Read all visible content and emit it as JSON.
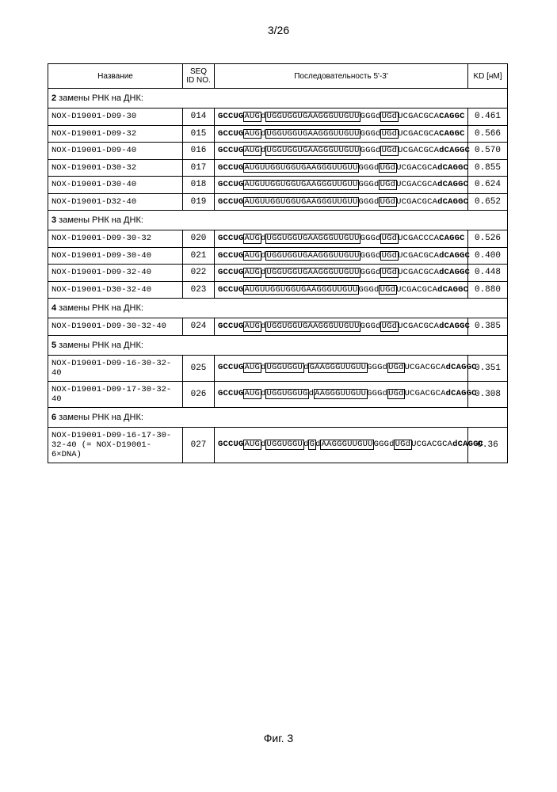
{
  "page_number": "3/26",
  "figure_label": "Фиг. 3",
  "headers": {
    "name": "Название",
    "seqid": "SEQ ID NO.",
    "seq": "Последовательность 5'-3'",
    "kd": "KD [нM]"
  },
  "sections": [
    {
      "bold": "2",
      "text": " замены РНК на ДНК:"
    },
    {
      "bold": "3",
      "text": " замены РНК на ДНК:"
    },
    {
      "bold": "4",
      "text": " замены РНК на ДНК:"
    },
    {
      "bold": "5",
      "text": " замены РНК на ДНК:"
    },
    {
      "bold": "6",
      "text": " замены РНК на ДНК:"
    }
  ],
  "rows": [
    {
      "name": "NOX-D19001-D09-30",
      "seqid": "014",
      "kd": "0.461",
      "seq": "<b>GCCUG</b><span class='box'>AUG</span>d<span class='box'>UGGUGGUGAAGGGUUGUU</span>GGGd<span class='box'>UGd</span>UCGACGCA<b>CAGGC</b>"
    },
    {
      "name": "NOX-D19001-D09-32",
      "seqid": "015",
      "kd": "0.566",
      "seq": "<b>GCCUG</b><span class='box'>AUG</span>d<span class='box'>UGGUGGUGAAGGGUUGUU</span>GGGd<span class='box'>UGd</span>UCGACGCA<b>CAGGC</b>"
    },
    {
      "name": "NOX-D19001-D09-40",
      "seqid": "016",
      "kd": "0.570",
      "seq": "<b>GCCUG</b><span class='box'>AUG</span>d<span class='box'>UGGUGGUGAAGGGUUGUU</span>GGGd<span class='box'>UGd</span>UCGACGCA<b>dCAGGC</b>"
    },
    {
      "name": "NOX-D19001-D30-32",
      "seqid": "017",
      "kd": "0.855",
      "seq": "<b>GCCUG</b><span class='box'>AUGUUGGUGGUGAAGGGUUGUU</span>GGGd<span class='box'>UGd</span>UCGACGCA<b>dCAGGC</b>"
    },
    {
      "name": "NOX-D19001-D30-40",
      "seqid": "018",
      "kd": "0.624",
      "seq": "<b>GCCUG</b><span class='box'>AUGUUGGUGGUGAAGGGUUGUU</span>GGGd<span class='box'>UGd</span>UCGACGCA<b>dCAGGC</b>"
    },
    {
      "name": "NOX-D19001-D32-40",
      "seqid": "019",
      "kd": "0.652",
      "seq": "<b>GCCUG</b><span class='box'>AUGUUGGUGGUGAAGGGUUGUU</span>GGGd<span class='box'>UGd</span>UCGACGCA<b>dCAGGC</b>"
    },
    {
      "name": "NOX-D19001-D09-30-32",
      "seqid": "020",
      "kd": "0.526",
      "seq": "<b>GCCUG</b><span class='box'>AUG</span>d<span class='box'>UGGUGGUGAAGGGUUGUU</span>GGGd<span class='box'>UGd</span>UCGACCCA<b>CAGGC</b>"
    },
    {
      "name": "NOX-D19001-D09-30-40",
      "seqid": "021",
      "kd": "0.400",
      "seq": "<b>GCCUG</b><span class='box'>AUG</span>d<span class='box'>UGGUGGUGAAGGGUUGUU</span>GGGd<span class='box'>UGd</span>UCGACGCA<b>dCAGGC</b>"
    },
    {
      "name": "NOX-D19001-D09-32-40",
      "seqid": "022",
      "kd": "0.448",
      "seq": "<b>GCCUG</b><span class='box'>AUG</span>d<span class='box'>UGGUGGUGAAGGGUUGUU</span>GGGd<span class='box'>UGd</span>UCGACGCA<b>dCAGGC</b>"
    },
    {
      "name": "NOX-D19001-D30-32-40",
      "seqid": "023",
      "kd": "0.880",
      "seq": "<b>GCCUG</b><span class='box'>AUGUUGGUGGUGAAGGGUUGUU</span>GGGd<span class='box'>UGd</span>UCGACGCA<b>dCAGGC</b>"
    },
    {
      "name": "NOX-D19001-D09-30-32-40",
      "seqid": "024",
      "kd": "0.385",
      "seq": "<b>GCCUG</b><span class='box'>AUG</span>d<span class='box'>UGGUGGUGAAGGGUUGUU</span>GGGd<span class='box'>UGd</span>UCGACGCA<b>dCAGGC</b>"
    },
    {
      "name": "NOX-D19001-D09-16-30-32-40",
      "seqid": "025",
      "kd": "0.351",
      "seq": "<b>GCCUG</b><span class='box'>AUG</span>d<span class='box'>UGGUGGU</span>d<span class='box'>GAAGGGUUGUU</span>GGGd<span class='box'>UGd</span>UCGACGCA<b>dCAGGC</b>"
    },
    {
      "name": "NOX-D19001-D09-17-30-32-40",
      "seqid": "026",
      "kd": "0.308",
      "seq": "<b>GCCUG</b><span class='box'>AUG</span>d<span class='box'>UGGUGGUG</span>d<span class='box'>AAGGGUUGUU</span>GGGd<span class='box'>UGd</span>UCGACGCA<b>dCAGGC</b>"
    },
    {
      "name": "NOX-D19001-D09-16-17-30-32-40 (= NOX-D19001-6×DNA)",
      "seqid": "027",
      "kd": "0.36",
      "seq": "<b>GCCUG</b><span class='box'>AUG</span>d<span class='box'>UGGUGGU</span>d<span class='box'>G</span>d<span class='box'>AAGGGUUGUU</span>GGGd<span class='box'>UGd</span>UCGACGCA<b>dCAGGC</b>"
    }
  ],
  "layout": [
    {
      "type": "section",
      "i": 0
    },
    {
      "type": "row",
      "i": 0
    },
    {
      "type": "row",
      "i": 1
    },
    {
      "type": "row",
      "i": 2
    },
    {
      "type": "row",
      "i": 3
    },
    {
      "type": "row",
      "i": 4
    },
    {
      "type": "row",
      "i": 5
    },
    {
      "type": "section",
      "i": 1
    },
    {
      "type": "row",
      "i": 6
    },
    {
      "type": "row",
      "i": 7
    },
    {
      "type": "row",
      "i": 8
    },
    {
      "type": "row",
      "i": 9
    },
    {
      "type": "section",
      "i": 2
    },
    {
      "type": "row",
      "i": 10
    },
    {
      "type": "section",
      "i": 3
    },
    {
      "type": "row",
      "i": 11
    },
    {
      "type": "row",
      "i": 12
    },
    {
      "type": "section",
      "i": 4
    },
    {
      "type": "row",
      "i": 13
    }
  ]
}
